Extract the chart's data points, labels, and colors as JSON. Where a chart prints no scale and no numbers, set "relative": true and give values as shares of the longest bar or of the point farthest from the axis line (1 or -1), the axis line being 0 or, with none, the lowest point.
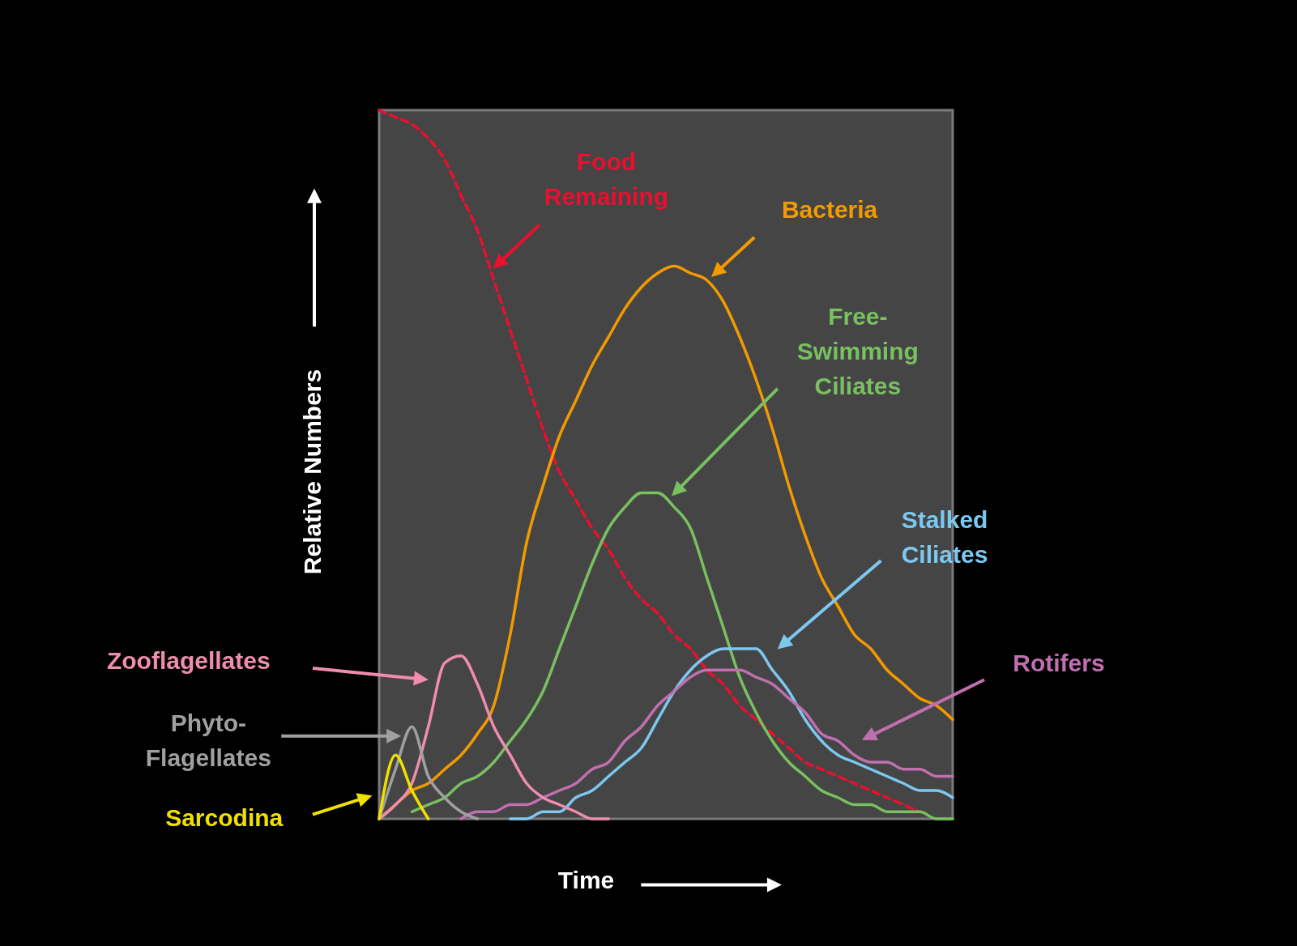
{
  "chart_data": {
    "type": "line",
    "xlabel": "Time",
    "ylabel": "Relative Numbers",
    "relative": true,
    "line_style": "solid",
    "legend": "left",
    "categories": [
      null,
      null,
      null,
      null,
      null,
      null,
      null,
      null,
      null,
      null,
      null,
      null,
      null,
      null,
      null,
      null,
      null,
      null,
      null,
      null,
      null,
      null,
      null,
      null,
      null,
      null,
      null,
      null,
      null,
      null,
      null,
      null,
      null,
      null,
      null,
      null
    ],
    "series": [
      {
        "name": "Food Remaining",
        "color": "#e8102e",
        "line_style": "dashed",
        "values": [
          1.0,
          0.99,
          0.98,
          0.96,
          0.93,
          0.88,
          0.83,
          0.76,
          0.69,
          0.62,
          0.55,
          0.49,
          0.45,
          0.41,
          0.38,
          0.34,
          0.31,
          0.29,
          0.26,
          0.24,
          0.21,
          0.19,
          0.16,
          0.14,
          0.12,
          0.1,
          0.08,
          0.07,
          0.06,
          0.05,
          0.04,
          0.03,
          0.02,
          0.01,
          null,
          null
        ]
      },
      {
        "name": "Bacteria",
        "color": "#f29a00",
        "values": [
          0,
          0.02,
          0.04,
          0.05,
          0.07,
          0.09,
          0.12,
          0.16,
          0.26,
          0.39,
          0.47,
          0.54,
          0.59,
          0.64,
          0.68,
          0.72,
          0.75,
          0.77,
          0.78,
          0.77,
          0.76,
          0.73,
          0.68,
          0.62,
          0.55,
          0.47,
          0.4,
          0.34,
          0.3,
          0.26,
          0.24,
          0.21,
          0.19,
          0.17,
          0.16,
          0.14
        ]
      },
      {
        "name": "Free-Swimming Ciliates",
        "color": "#78c060",
        "values": [
          null,
          null,
          0.01,
          0.02,
          0.03,
          0.05,
          0.06,
          0.08,
          0.11,
          0.14,
          0.18,
          0.24,
          0.3,
          0.36,
          0.41,
          0.44,
          0.46,
          0.46,
          0.44,
          0.41,
          0.34,
          0.27,
          0.2,
          0.15,
          0.11,
          0.08,
          0.06,
          0.04,
          0.03,
          0.02,
          0.02,
          0.01,
          0.01,
          0.01,
          0,
          0
        ]
      },
      {
        "name": "Stalked Ciliates",
        "color": "#7cc8f0",
        "values": [
          null,
          null,
          null,
          null,
          null,
          null,
          null,
          null,
          0,
          0,
          0.01,
          0.01,
          0.03,
          0.04,
          0.06,
          0.08,
          0.1,
          0.14,
          0.18,
          0.21,
          0.23,
          0.24,
          0.24,
          0.24,
          0.21,
          0.18,
          0.14,
          0.11,
          0.09,
          0.08,
          0.07,
          0.06,
          0.05,
          0.04,
          0.04,
          0.03
        ]
      },
      {
        "name": "Rotifers",
        "color": "#c070b0",
        "values": [
          null,
          null,
          null,
          null,
          null,
          0,
          0.01,
          0.01,
          0.02,
          0.02,
          0.03,
          0.04,
          0.05,
          0.07,
          0.08,
          0.11,
          0.13,
          0.16,
          0.18,
          0.2,
          0.21,
          0.21,
          0.21,
          0.2,
          0.19,
          0.17,
          0.15,
          0.12,
          0.11,
          0.09,
          0.08,
          0.08,
          0.07,
          0.07,
          0.06,
          0.06
        ]
      },
      {
        "name": "Zooflagellates",
        "color": "#f08cb0",
        "values": [
          0,
          0.02,
          0.05,
          0.13,
          0.22,
          0.23,
          0.19,
          0.13,
          0.09,
          0.05,
          0.03,
          0.02,
          0.01,
          0,
          0,
          null,
          null,
          null,
          null,
          null,
          null,
          null,
          null,
          null,
          null,
          null,
          null,
          null,
          null,
          null,
          null,
          null,
          null,
          null,
          null,
          null
        ]
      },
      {
        "name": "Phyto-Flagellates",
        "color": "#a0a0a0",
        "values": [
          0,
          0.07,
          0.13,
          0.06,
          0.03,
          0.01,
          0,
          null,
          null,
          null,
          null,
          null,
          null,
          null,
          null,
          null,
          null,
          null,
          null,
          null,
          null,
          null,
          null,
          null,
          null,
          null,
          null,
          null,
          null,
          null,
          null,
          null,
          null,
          null,
          null,
          null
        ]
      },
      {
        "name": "Sarcodina",
        "color": "#f0e000",
        "values": [
          0,
          0.09,
          0.04,
          0,
          null,
          null,
          null,
          null,
          null,
          null,
          null,
          null,
          null,
          null,
          null,
          null,
          null,
          null,
          null,
          null,
          null,
          null,
          null,
          null,
          null,
          null,
          null,
          null,
          null,
          null,
          null,
          null,
          null,
          null,
          null,
          null
        ]
      }
    ]
  }
}
